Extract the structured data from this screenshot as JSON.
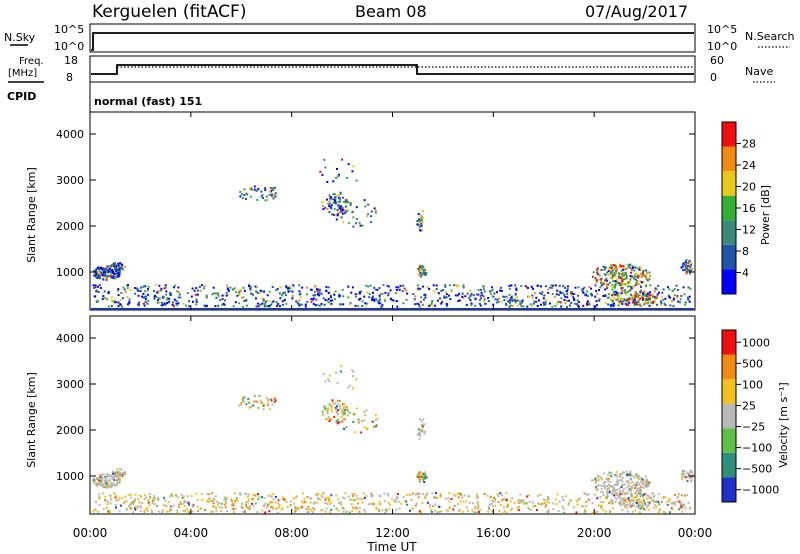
{
  "header": {
    "site": "Kerguelen (fitACF)",
    "beam": "Beam 08",
    "date": "07/Aug/2017"
  },
  "nsky_panel": {
    "left_label": "N.Sky",
    "right_label": "N.Search",
    "left_ticks": [
      "10^5",
      "10^0"
    ],
    "right_ticks": [
      "10^5",
      "10^0"
    ]
  },
  "freq_panel": {
    "left_label_1": "Freq.",
    "left_label_2": "[MHz]",
    "left_ticks": [
      "18",
      "8"
    ],
    "right_label": "Nave",
    "right_ticks": [
      "60",
      "0"
    ],
    "cpid_label": "CPID",
    "mode_text": "normal (fast) 151"
  },
  "chart_data": [
    {
      "type": "heatmap",
      "name": "power",
      "ylabel": "Slant Range [km]",
      "yticks": [
        "4000",
        "3000",
        "2000",
        "1000"
      ],
      "colorbar_label": "Power [dB]",
      "colorbar_ticks": [
        "28",
        "24",
        "20",
        "16",
        "12",
        "8",
        "4"
      ],
      "colors": [
        "#0000ff",
        "#2255aa",
        "#3a8a7a",
        "#33b033",
        "#e8c81a",
        "#f08a10",
        "#ee1010"
      ]
    },
    {
      "type": "heatmap",
      "name": "velocity",
      "ylabel": "Slant Range [km]",
      "yticks": [
        "4000",
        "3000",
        "2000",
        "1000"
      ],
      "colorbar_label": "Velocity [m s⁻¹]",
      "colorbar_ticks": [
        "1000",
        "500",
        "100",
        "25",
        "−25",
        "−100",
        "−500",
        "−1000"
      ],
      "colors": [
        "#1e32c8",
        "#2e8f7a",
        "#5ec048",
        "#b8b8b8",
        "#f0c020",
        "#f08a10",
        "#ee1010"
      ]
    }
  ],
  "x_axis": {
    "ticks": [
      "00:00",
      "04:00",
      "08:00",
      "12:00",
      "16:00",
      "20:00",
      "00:00"
    ],
    "label": "Time UT"
  }
}
